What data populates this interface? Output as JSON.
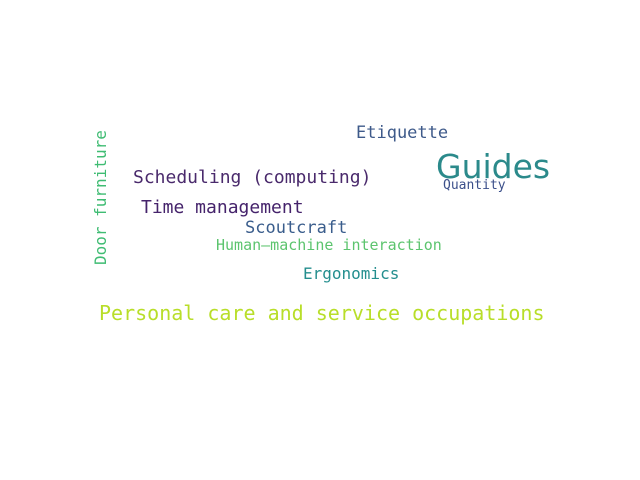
{
  "words": {
    "guides": "Guides",
    "etiquette": "Etiquette",
    "quantity": "Quantity",
    "scheduling": "Scheduling (computing)",
    "time_management": "Time management",
    "scoutcraft": "Scoutcraft",
    "human_machine": "Human–machine interaction",
    "ergonomics": "Ergonomics",
    "personal_care": "Personal care and service occupations",
    "door_furniture": "Door furniture"
  },
  "colors": {
    "background": "#ffffff",
    "guides": "#2b8a8b",
    "etiquette": "#3e5a8a",
    "quantity": "#3b4f8a",
    "scheduling": "#4a2a6c",
    "time_management": "#45236b",
    "scoutcraft": "#3a5d8c",
    "human_machine": "#5cc46e",
    "ergonomics": "#248e8e",
    "personal_care": "#b8de29",
    "door_furniture": "#3fbc73"
  }
}
